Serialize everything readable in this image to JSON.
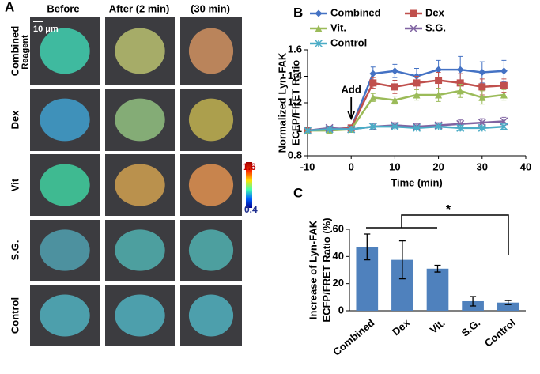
{
  "panel_a": {
    "label": "A",
    "columns": [
      "Before",
      "After (2 min)",
      "(30 min)"
    ],
    "rows": [
      "Combined",
      "Dex",
      "Vit",
      "S.G.",
      "Control"
    ],
    "row_sublabel": "Reagent",
    "scale_bar": "10 μm",
    "colorbar": {
      "max": 1.6,
      "min": 0.4
    }
  },
  "chart_data": [
    {
      "type": "line",
      "panel_label": "B",
      "xlabel": "Time (min)",
      "ylabel": [
        "Normalized Lyn-FAK",
        "ECFP/FRET Ratio"
      ],
      "annotation": "Add",
      "x": [
        -10,
        -5,
        0,
        5,
        10,
        15,
        20,
        25,
        30,
        35
      ],
      "series": [
        {
          "name": "Combined",
          "color": "#4472c4",
          "marker": "diamond",
          "values": [
            0.99,
            1.0,
            1.01,
            1.42,
            1.44,
            1.4,
            1.45,
            1.45,
            1.43,
            1.44
          ],
          "errors": [
            0.01,
            0.02,
            0.02,
            0.05,
            0.05,
            0.06,
            0.07,
            0.1,
            0.08,
            0.08
          ]
        },
        {
          "name": "Dex",
          "color": "#c0504d",
          "marker": "square",
          "values": [
            0.99,
            1.0,
            1.01,
            1.35,
            1.32,
            1.35,
            1.37,
            1.35,
            1.32,
            1.33
          ],
          "errors": [
            0.01,
            0.01,
            0.02,
            0.04,
            0.05,
            0.05,
            0.06,
            0.07,
            0.06,
            0.05
          ]
        },
        {
          "name": "Vit.",
          "color": "#9bbb59",
          "marker": "triangle",
          "values": [
            0.99,
            0.99,
            1.0,
            1.24,
            1.22,
            1.26,
            1.26,
            1.29,
            1.24,
            1.26
          ],
          "errors": [
            0.01,
            0.01,
            0.01,
            0.03,
            0.03,
            0.04,
            0.05,
            0.05,
            0.05,
            0.04
          ]
        },
        {
          "name": "S.G.",
          "color": "#8064a2",
          "marker": "x",
          "values": [
            0.99,
            1.01,
            1.0,
            1.02,
            1.03,
            1.02,
            1.03,
            1.04,
            1.05,
            1.06
          ],
          "errors": [
            0.01,
            0.01,
            0.01,
            0.02,
            0.02,
            0.02,
            0.02,
            0.03,
            0.03,
            0.03
          ]
        },
        {
          "name": "Control",
          "color": "#4bacc6",
          "marker": "star",
          "values": [
            0.99,
            1.0,
            1.0,
            1.02,
            1.02,
            1.01,
            1.02,
            1.01,
            1.01,
            1.02
          ],
          "errors": [
            0.01,
            0.01,
            0.01,
            0.01,
            0.01,
            0.01,
            0.01,
            0.02,
            0.01,
            0.02
          ]
        }
      ],
      "xlim": [
        -10,
        40
      ],
      "xticks": [
        -10,
        0,
        10,
        20,
        30,
        40
      ],
      "ylim": [
        0.8,
        1.6
      ],
      "yticks": [
        0.8,
        1,
        1.2,
        1.4,
        1.6
      ]
    },
    {
      "type": "bar",
      "panel_label": "C",
      "ylabel": [
        "Increase of Lyn-FAK",
        "ECFP/FRET Ratio (%)"
      ],
      "annotation": "*",
      "categories": [
        "Combined",
        "Dex",
        "Vit.",
        "S.G.",
        "Control"
      ],
      "values": [
        47,
        37.5,
        31,
        7,
        6
      ],
      "errors": [
        9.5,
        14,
        2.5,
        3.5,
        1.5
      ],
      "color": "#4f81bd",
      "ylim": [
        0,
        60
      ],
      "yticks": [
        0,
        20,
        40,
        60
      ]
    }
  ]
}
